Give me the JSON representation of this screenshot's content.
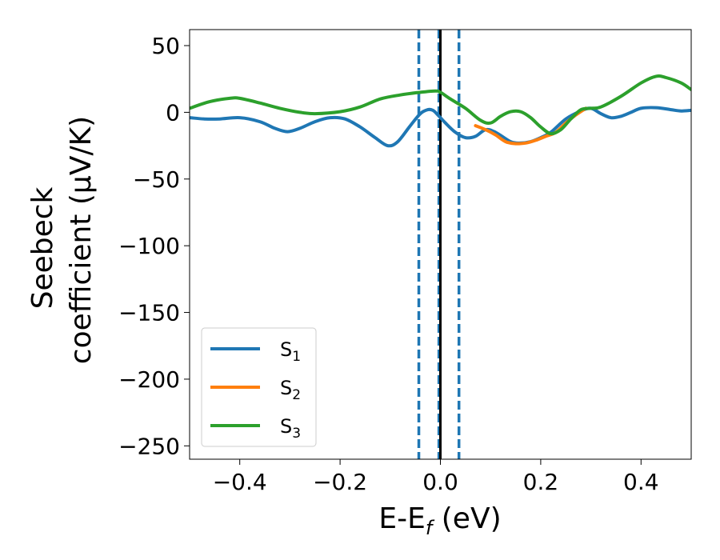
{
  "chart_data": {
    "type": "line",
    "xlabel": {
      "main": "E-E",
      "sub": "f",
      "unit": " (eV)"
    },
    "ylabel": {
      "line1": "Seebeck",
      "line2": "coefficient  (μV/K)"
    },
    "xlim": [
      -0.5,
      0.5
    ],
    "ylim": [
      -260,
      62
    ],
    "xticks": [
      -0.4,
      -0.2,
      0.0,
      0.2,
      0.4
    ],
    "xtick_labels": [
      "−0.4",
      "−0.2",
      "0.0",
      "0.2",
      "0.4"
    ],
    "yticks": [
      50,
      0,
      -50,
      -100,
      -150,
      -200,
      -250
    ],
    "ytick_labels": [
      "50",
      "0",
      "−50",
      "−100",
      "−150",
      "−200",
      "−250"
    ],
    "grid": false,
    "legend_position": "lower-left",
    "vlines": [
      {
        "x": -0.043,
        "color": "#1f77b4",
        "style": "dashed"
      },
      {
        "x": -0.003,
        "color": "#1f77b4",
        "style": "dashed"
      },
      {
        "x": 0.0,
        "color": "#000000",
        "style": "solid"
      },
      {
        "x": 0.037,
        "color": "#1f77b4",
        "style": "dashed"
      }
    ],
    "series": [
      {
        "name": "S",
        "sub": "1",
        "color": "#1f77b4",
        "points": [
          [
            -0.5,
            -4
          ],
          [
            -0.47,
            -5
          ],
          [
            -0.44,
            -5
          ],
          [
            -0.4,
            -4
          ],
          [
            -0.36,
            -7
          ],
          [
            -0.33,
            -12
          ],
          [
            -0.305,
            -14.5
          ],
          [
            -0.28,
            -12
          ],
          [
            -0.25,
            -7
          ],
          [
            -0.22,
            -4
          ],
          [
            -0.19,
            -5
          ],
          [
            -0.16,
            -11
          ],
          [
            -0.13,
            -19
          ],
          [
            -0.105,
            -25
          ],
          [
            -0.085,
            -22
          ],
          [
            -0.06,
            -10
          ],
          [
            -0.04,
            -1
          ],
          [
            -0.025,
            2
          ],
          [
            -0.015,
            1.5
          ],
          [
            -0.005,
            -2
          ],
          [
            0.01,
            -8
          ],
          [
            0.03,
            -15
          ],
          [
            0.05,
            -19
          ],
          [
            0.07,
            -18
          ],
          [
            0.09,
            -13
          ],
          [
            0.11,
            -15
          ],
          [
            0.14,
            -22
          ],
          [
            0.16,
            -23
          ],
          [
            0.18,
            -22
          ],
          [
            0.2,
            -19
          ],
          [
            0.22,
            -15
          ],
          [
            0.25,
            -5
          ],
          [
            0.28,
            1
          ],
          [
            0.3,
            3
          ],
          [
            0.32,
            -1
          ],
          [
            0.34,
            -4
          ],
          [
            0.36,
            -3
          ],
          [
            0.38,
            0
          ],
          [
            0.4,
            3
          ],
          [
            0.43,
            3.5
          ],
          [
            0.46,
            2
          ],
          [
            0.48,
            1
          ],
          [
            0.5,
            1.5
          ]
        ]
      },
      {
        "name": "S",
        "sub": "2",
        "color": "#ff7f0e",
        "points": [
          [
            0.07,
            -10
          ],
          [
            0.09,
            -13
          ],
          [
            0.11,
            -17
          ],
          [
            0.13,
            -22
          ],
          [
            0.15,
            -23.5
          ],
          [
            0.17,
            -23
          ],
          [
            0.19,
            -21
          ],
          [
            0.21,
            -18
          ],
          [
            0.23,
            -15
          ],
          [
            0.25,
            -8
          ],
          [
            0.27,
            -2
          ],
          [
            0.29,
            3
          ]
        ]
      },
      {
        "name": "S",
        "sub": "3",
        "color": "#2ca02c",
        "points": [
          [
            -0.5,
            3
          ],
          [
            -0.46,
            8
          ],
          [
            -0.42,
            10.5
          ],
          [
            -0.4,
            10.5
          ],
          [
            -0.36,
            7
          ],
          [
            -0.32,
            3
          ],
          [
            -0.28,
            0
          ],
          [
            -0.25,
            -1
          ],
          [
            -0.2,
            0.5
          ],
          [
            -0.16,
            4
          ],
          [
            -0.12,
            10
          ],
          [
            -0.08,
            13
          ],
          [
            -0.04,
            15
          ],
          [
            -0.01,
            16
          ],
          [
            0.0,
            15
          ],
          [
            0.02,
            10
          ],
          [
            0.05,
            3
          ],
          [
            0.08,
            -6
          ],
          [
            0.1,
            -8
          ],
          [
            0.12,
            -3
          ],
          [
            0.14,
            0.5
          ],
          [
            0.16,
            0.5
          ],
          [
            0.18,
            -4
          ],
          [
            0.2,
            -11
          ],
          [
            0.22,
            -16
          ],
          [
            0.24,
            -13
          ],
          [
            0.26,
            -5
          ],
          [
            0.28,
            2
          ],
          [
            0.3,
            3
          ],
          [
            0.32,
            4
          ],
          [
            0.36,
            12
          ],
          [
            0.4,
            22
          ],
          [
            0.43,
            27
          ],
          [
            0.45,
            26
          ],
          [
            0.48,
            22
          ],
          [
            0.5,
            17
          ]
        ]
      }
    ]
  }
}
